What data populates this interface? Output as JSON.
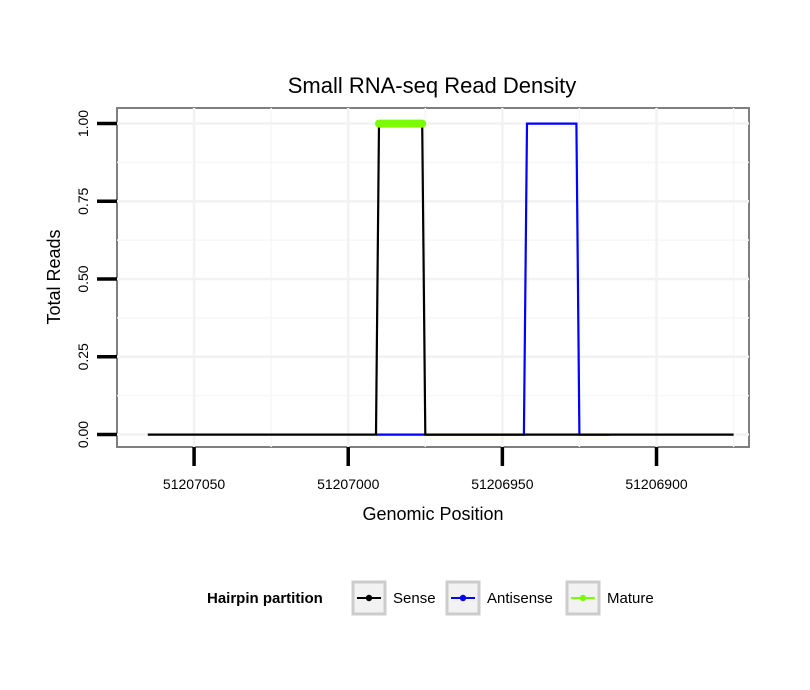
{
  "chart_data": {
    "type": "line",
    "title": "Small RNA-seq Read Density",
    "xlabel": "Genomic Position",
    "ylabel": "Total Reads",
    "xlim": [
      51207075,
      51206870
    ],
    "x_reversed": true,
    "ylim": [
      -0.04,
      1.05
    ],
    "x_ticks": [
      51207050,
      51207000,
      51206950,
      51206900
    ],
    "x_tick_labels": [
      "51207050",
      "51207000",
      "51206950",
      "51206900"
    ],
    "y_ticks": [
      0,
      0.25,
      0.5,
      0.75,
      1.0
    ],
    "y_tick_labels": [
      "0.00",
      "0.25",
      "0.50",
      "0.75",
      "1.00"
    ],
    "grid": true,
    "legend": {
      "title": "Hairpin partition",
      "position": "bottom",
      "entries": [
        "Sense",
        "Antisense",
        "Mature"
      ]
    },
    "series": [
      {
        "name": "Sense",
        "color": "#000000",
        "x": [
          51207065,
          51206991,
          51206990,
          51206976,
          51206975,
          51206875
        ],
        "y": [
          0,
          0,
          1,
          1,
          0,
          0
        ]
      },
      {
        "name": "Antisense",
        "color": "#0000ff",
        "x": [
          51206991,
          51206943,
          51206942,
          51206926,
          51206925,
          51206915
        ],
        "y": [
          0,
          0,
          1,
          1,
          0,
          0
        ]
      },
      {
        "name": "Mature",
        "color": "#7cfc00",
        "x": [
          51206990,
          51206976
        ],
        "y": [
          1,
          1
        ]
      }
    ]
  }
}
